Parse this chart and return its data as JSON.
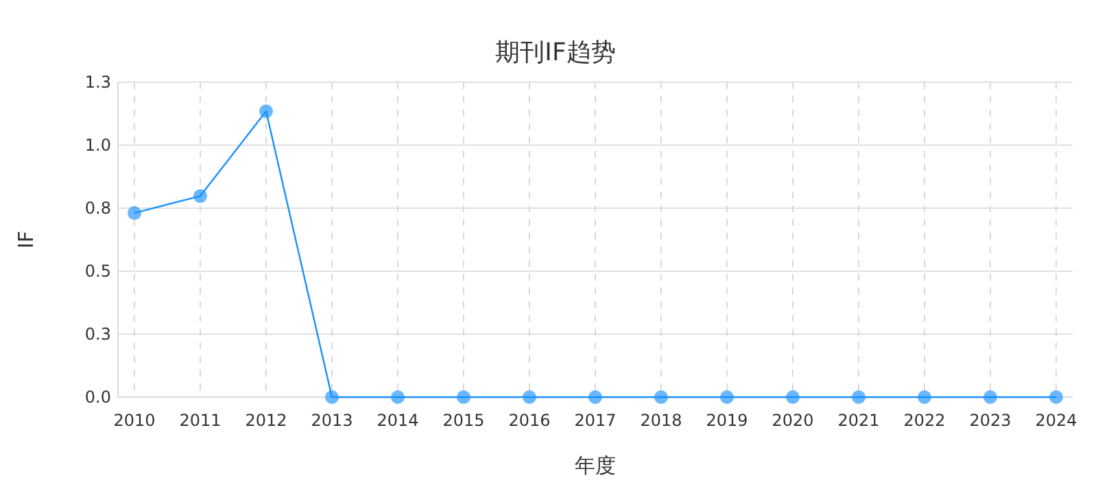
{
  "chart_data": {
    "type": "line",
    "title": "期刊IF趋势",
    "xlabel": "年度",
    "ylabel": "IF",
    "categories": [
      "2010",
      "2011",
      "2012",
      "2013",
      "2014",
      "2015",
      "2016",
      "2017",
      "2018",
      "2019",
      "2020",
      "2021",
      "2022",
      "2023",
      "2024"
    ],
    "series": [
      {
        "color": "#1890ff",
        "values": [
          0.76,
          0.83,
          1.18,
          0,
          0,
          0,
          0,
          0,
          0,
          0,
          0,
          0,
          0,
          0,
          0
        ]
      }
    ],
    "ylim": [
      0,
      1.3
    ],
    "yticks": [
      {
        "value": 0,
        "label": "0.0"
      },
      {
        "value": 0.26,
        "label": "0.3"
      },
      {
        "value": 0.52,
        "label": "0.5"
      },
      {
        "value": 0.78,
        "label": "0.8"
      },
      {
        "value": 1.04,
        "label": "1.0"
      },
      {
        "value": 1.3,
        "label": "1.3"
      }
    ],
    "grid": true,
    "marker": "circle"
  }
}
